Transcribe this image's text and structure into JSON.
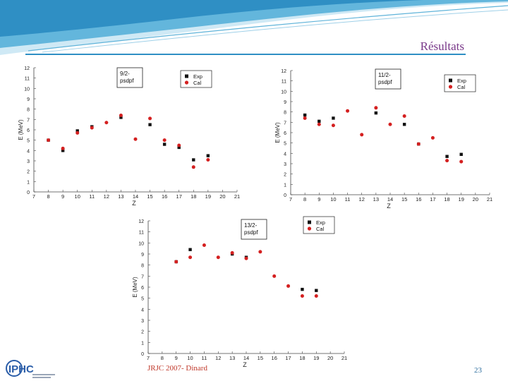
{
  "slide": {
    "title": "Résultats",
    "footer": "JRJC 2007- Dinard",
    "page_number": "23",
    "logo_text": "IPHC"
  },
  "colors": {
    "exp": "#111111",
    "cal": "#d42020",
    "title": "#7a3a8a",
    "banner": "#2f8fc4"
  },
  "chart_data": [
    {
      "type": "scatter",
      "label_box": "9/2-\npsdpf",
      "ylabel": "E (MeV)",
      "xlabel": "Z",
      "xlim": [
        7,
        21
      ],
      "ylim": [
        0,
        12
      ],
      "xticks": [
        7,
        8,
        9,
        10,
        11,
        12,
        13,
        14,
        15,
        16,
        17,
        18,
        19,
        20,
        21
      ],
      "yticks": [
        0,
        1,
        2,
        3,
        4,
        5,
        6,
        7,
        8,
        9,
        10,
        11,
        12
      ],
      "legend": [
        "Exp",
        "Cal"
      ],
      "series": [
        {
          "name": "Exp",
          "marker": "square",
          "x": [
            8,
            9,
            10,
            11,
            13,
            15,
            16,
            17,
            18,
            19
          ],
          "y": [
            5.0,
            4.0,
            5.9,
            6.3,
            7.2,
            6.5,
            4.6,
            4.3,
            3.1,
            3.5
          ]
        },
        {
          "name": "Cal",
          "marker": "circle",
          "x": [
            8,
            9,
            10,
            11,
            12,
            13,
            14,
            15,
            16,
            17,
            18,
            19
          ],
          "y": [
            5.0,
            4.2,
            5.7,
            6.2,
            6.7,
            7.4,
            5.1,
            7.1,
            5.0,
            4.5,
            2.4,
            3.1
          ]
        }
      ]
    },
    {
      "type": "scatter",
      "label_box": "11/2-\npsdpf",
      "ylabel": "E (MeV)",
      "xlabel": "Z",
      "xlim": [
        7,
        21
      ],
      "ylim": [
        0,
        12
      ],
      "xticks": [
        7,
        8,
        9,
        10,
        11,
        12,
        13,
        14,
        15,
        16,
        17,
        18,
        19,
        20,
        21
      ],
      "yticks": [
        0,
        1,
        2,
        3,
        4,
        5,
        6,
        7,
        8,
        9,
        10,
        11,
        12
      ],
      "legend": [
        "Exp",
        "Cal"
      ],
      "series": [
        {
          "name": "Exp",
          "marker": "square",
          "x": [
            8,
            9,
            10,
            13,
            15,
            16,
            18,
            19
          ],
          "y": [
            7.7,
            7.1,
            7.4,
            7.9,
            6.8,
            4.9,
            3.7,
            3.9
          ]
        },
        {
          "name": "Cal",
          "marker": "circle",
          "x": [
            8,
            9,
            10,
            11,
            12,
            13,
            14,
            15,
            16,
            17,
            18,
            19
          ],
          "y": [
            7.4,
            6.8,
            6.7,
            8.1,
            5.8,
            8.4,
            6.8,
            7.6,
            4.9,
            5.5,
            3.3,
            3.2
          ]
        }
      ]
    },
    {
      "type": "scatter",
      "label_box": "13/2-\npsdpf",
      "ylabel": "E (MeV)",
      "xlabel": "Z",
      "xlim": [
        7,
        21
      ],
      "ylim": [
        0,
        12
      ],
      "xticks": [
        7,
        8,
        9,
        10,
        11,
        12,
        13,
        14,
        15,
        16,
        17,
        18,
        19,
        20,
        21
      ],
      "yticks": [
        0,
        1,
        2,
        3,
        4,
        5,
        6,
        7,
        8,
        9,
        10,
        11,
        12
      ],
      "legend": [
        "Exp",
        "Cal"
      ],
      "series": [
        {
          "name": "Exp",
          "marker": "square",
          "x": [
            9,
            10,
            13,
            14,
            18,
            19
          ],
          "y": [
            8.3,
            9.4,
            9.0,
            8.7,
            5.8,
            5.7
          ]
        },
        {
          "name": "Cal",
          "marker": "circle",
          "x": [
            9,
            10,
            11,
            12,
            13,
            14,
            15,
            16,
            17,
            18,
            19
          ],
          "y": [
            8.3,
            8.7,
            9.8,
            8.7,
            9.1,
            8.6,
            9.2,
            7.0,
            6.1,
            5.2,
            5.2
          ]
        }
      ]
    }
  ]
}
